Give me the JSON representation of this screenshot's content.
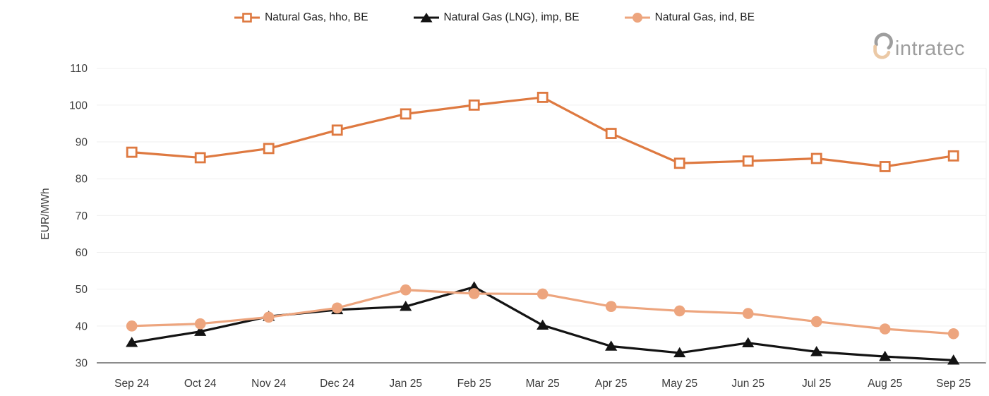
{
  "logo": {
    "text": "intratec"
  },
  "chart_data": {
    "type": "line",
    "title": "",
    "xlabel": "",
    "ylabel": "EUR/MWh",
    "ylim": [
      30,
      110
    ],
    "ytick_step": 10,
    "grid": "horizontal",
    "legend_position": "top-center",
    "categories": [
      "Sep 24",
      "Oct 24",
      "Nov 24",
      "Dec 24",
      "Jan 25",
      "Feb 25",
      "Mar 25",
      "Apr 25",
      "May 25",
      "Jun 25",
      "Jul 25",
      "Aug 25",
      "Sep 25"
    ],
    "series": [
      {
        "name": "Natural Gas, hho, BE",
        "color": "#DE7940",
        "marker": "open-square",
        "values": [
          87.2,
          85.7,
          88.2,
          93.2,
          97.6,
          100.0,
          102.1,
          92.3,
          84.2,
          84.8,
          85.5,
          83.3,
          86.2
        ]
      },
      {
        "name": "Natural Gas (LNG), imp, BE",
        "color": "#131313",
        "marker": "triangle",
        "values": [
          35.5,
          38.5,
          42.6,
          44.4,
          45.3,
          50.6,
          40.2,
          34.5,
          32.7,
          35.4,
          33.0,
          31.7,
          30.7
        ]
      },
      {
        "name": "Natural Gas, ind, BE",
        "color": "#EDA57E",
        "marker": "circle",
        "values": [
          40.0,
          40.6,
          42.4,
          44.9,
          49.8,
          48.8,
          48.7,
          45.3,
          44.1,
          43.4,
          41.2,
          39.2,
          37.9
        ]
      }
    ]
  },
  "colors": {
    "grid": "#EFEFEF",
    "axis_line": "#8C8C8C",
    "tick_label": "#3B3B3B",
    "legend_text": "#222222",
    "logo_text": "#9E9E9E",
    "logo_arc_top": "#9E9E9E",
    "logo_arc_bottom": "#EBC9A6"
  }
}
